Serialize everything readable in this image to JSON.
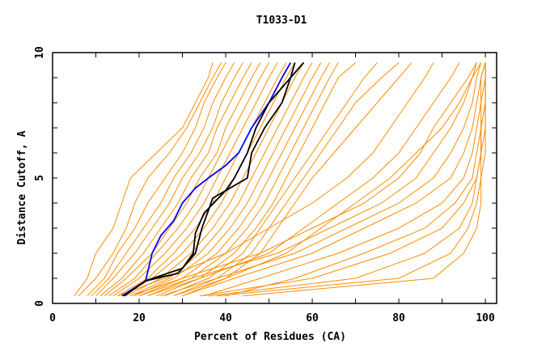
{
  "chart_data": {
    "type": "line",
    "title": "T1033-D1",
    "xlabel": "Percent of Residues (CA)",
    "ylabel": "Distance Cutoff, A",
    "xlim": [
      0,
      102.6
    ],
    "ylim": [
      0,
      10
    ],
    "x_ticks": [
      0,
      20,
      40,
      60,
      80,
      100
    ],
    "y_ticks": [
      0,
      5,
      10
    ],
    "grid": false,
    "colors": {
      "models": "#ff8c00",
      "highlight_blue": "#0000ff",
      "highlight_black": "#000000"
    },
    "y_levels": [
      0.3,
      1,
      2,
      3,
      4,
      5,
      6,
      7,
      8,
      9,
      9.6
    ],
    "model_curves_x": [
      [
        5,
        8,
        10,
        14,
        16,
        18,
        24,
        30,
        33,
        36,
        37
      ],
      [
        6,
        10,
        14,
        17,
        19,
        22,
        27,
        31,
        34,
        37,
        39
      ],
      [
        8,
        12,
        15,
        19,
        22,
        26,
        30,
        33,
        35,
        38,
        40
      ],
      [
        9,
        13,
        17,
        21,
        25,
        28,
        32,
        35,
        37,
        40,
        42
      ],
      [
        10,
        14,
        19,
        23,
        27,
        30,
        34,
        37,
        39,
        42,
        44
      ],
      [
        11,
        16,
        21,
        25,
        29,
        32,
        36,
        38,
        41,
        44,
        46
      ],
      [
        12,
        17,
        23,
        27,
        31,
        34,
        38,
        40,
        43,
        46,
        48
      ],
      [
        13,
        19,
        24,
        29,
        33,
        36,
        39,
        42,
        45,
        48,
        50
      ],
      [
        14,
        20,
        26,
        31,
        35,
        38,
        41,
        44,
        47,
        50,
        52
      ],
      [
        15,
        22,
        28,
        33,
        37,
        40,
        43,
        46,
        49,
        52,
        54
      ],
      [
        16,
        23,
        30,
        35,
        39,
        42,
        45,
        48,
        51,
        54,
        56
      ],
      [
        17,
        25,
        32,
        37,
        41,
        44,
        47,
        50,
        53,
        56,
        58
      ],
      [
        18,
        27,
        34,
        39,
        43,
        46,
        49,
        52,
        55,
        58,
        60
      ],
      [
        19,
        28,
        36,
        41,
        45,
        48,
        51,
        54,
        57,
        60,
        62
      ],
      [
        20,
        30,
        38,
        43,
        47,
        50,
        53,
        56,
        59,
        62,
        64
      ],
      [
        22,
        32,
        40,
        45,
        49,
        52,
        55,
        58,
        61,
        64,
        66
      ],
      [
        24,
        34,
        42,
        47,
        51,
        54,
        57,
        60,
        63,
        66,
        70
      ],
      [
        26,
        36,
        44,
        48,
        52,
        56,
        60,
        64,
        68,
        72,
        75
      ],
      [
        28,
        38,
        46,
        50,
        54,
        58,
        62,
        66,
        70,
        76,
        80
      ],
      [
        30,
        40,
        48,
        52,
        56,
        60,
        65,
        70,
        75,
        80,
        83
      ],
      [
        18,
        30,
        48,
        60,
        72,
        80,
        85,
        88,
        92,
        96,
        98
      ],
      [
        20,
        32,
        52,
        64,
        76,
        84,
        88,
        92,
        95,
        97,
        99
      ],
      [
        25,
        38,
        56,
        68,
        80,
        88,
        92,
        95,
        97,
        98,
        99
      ],
      [
        30,
        42,
        60,
        72,
        84,
        92,
        95,
        97,
        98,
        99,
        100
      ],
      [
        35,
        48,
        66,
        80,
        90,
        95,
        97,
        98,
        99,
        99,
        100
      ],
      [
        40,
        56,
        72,
        86,
        93,
        97,
        98,
        99,
        99,
        100,
        100
      ],
      [
        34,
        60,
        78,
        90,
        95,
        98,
        99,
        99,
        100,
        100,
        100
      ],
      [
        36,
        70,
        86,
        94,
        97,
        98,
        99,
        99,
        100,
        100,
        100
      ],
      [
        38,
        80,
        92,
        96,
        98,
        99,
        99,
        100,
        100,
        100,
        100
      ],
      [
        44,
        88,
        95,
        98,
        99,
        99,
        100,
        100,
        100,
        100,
        100
      ],
      [
        22,
        34,
        50,
        58,
        66,
        74,
        80,
        84,
        88,
        92,
        94
      ],
      [
        15,
        26,
        40,
        50,
        60,
        68,
        74,
        78,
        82,
        86,
        88
      ],
      [
        28,
        40,
        54,
        62,
        70,
        78,
        84,
        90,
        94,
        97,
        98
      ]
    ],
    "highlight_curves": [
      {
        "color": "#0000ff",
        "points": [
          [
            16,
            0.3
          ],
          [
            21.5,
            0.9
          ],
          [
            23,
            2
          ],
          [
            25,
            2.7
          ],
          [
            28,
            3.3
          ],
          [
            30,
            4
          ],
          [
            33,
            4.6
          ],
          [
            36,
            5
          ],
          [
            40,
            5.5
          ],
          [
            43,
            6
          ],
          [
            46,
            7
          ],
          [
            50,
            8
          ],
          [
            53,
            9
          ],
          [
            55,
            9.6
          ]
        ]
      },
      {
        "color": "#000000",
        "points": [
          [
            16.5,
            0.3
          ],
          [
            21.5,
            0.9
          ],
          [
            29,
            1.2
          ],
          [
            33,
            2
          ],
          [
            34.5,
            3
          ],
          [
            36,
            3.7
          ],
          [
            37,
            4.2
          ],
          [
            45,
            5
          ],
          [
            46,
            6
          ],
          [
            49,
            7
          ],
          [
            53,
            8
          ],
          [
            55,
            9
          ],
          [
            56,
            9.6
          ]
        ]
      },
      {
        "color": "#000000",
        "points": [
          [
            16.5,
            0.3
          ],
          [
            21.5,
            0.9
          ],
          [
            30,
            1.4
          ],
          [
            32.5,
            2
          ],
          [
            33,
            2.8
          ],
          [
            35,
            3.6
          ],
          [
            40,
            4.5
          ],
          [
            42,
            5
          ],
          [
            45,
            6
          ],
          [
            47,
            7
          ],
          [
            50,
            8
          ],
          [
            55,
            9
          ],
          [
            58,
            9.6
          ]
        ]
      }
    ]
  }
}
